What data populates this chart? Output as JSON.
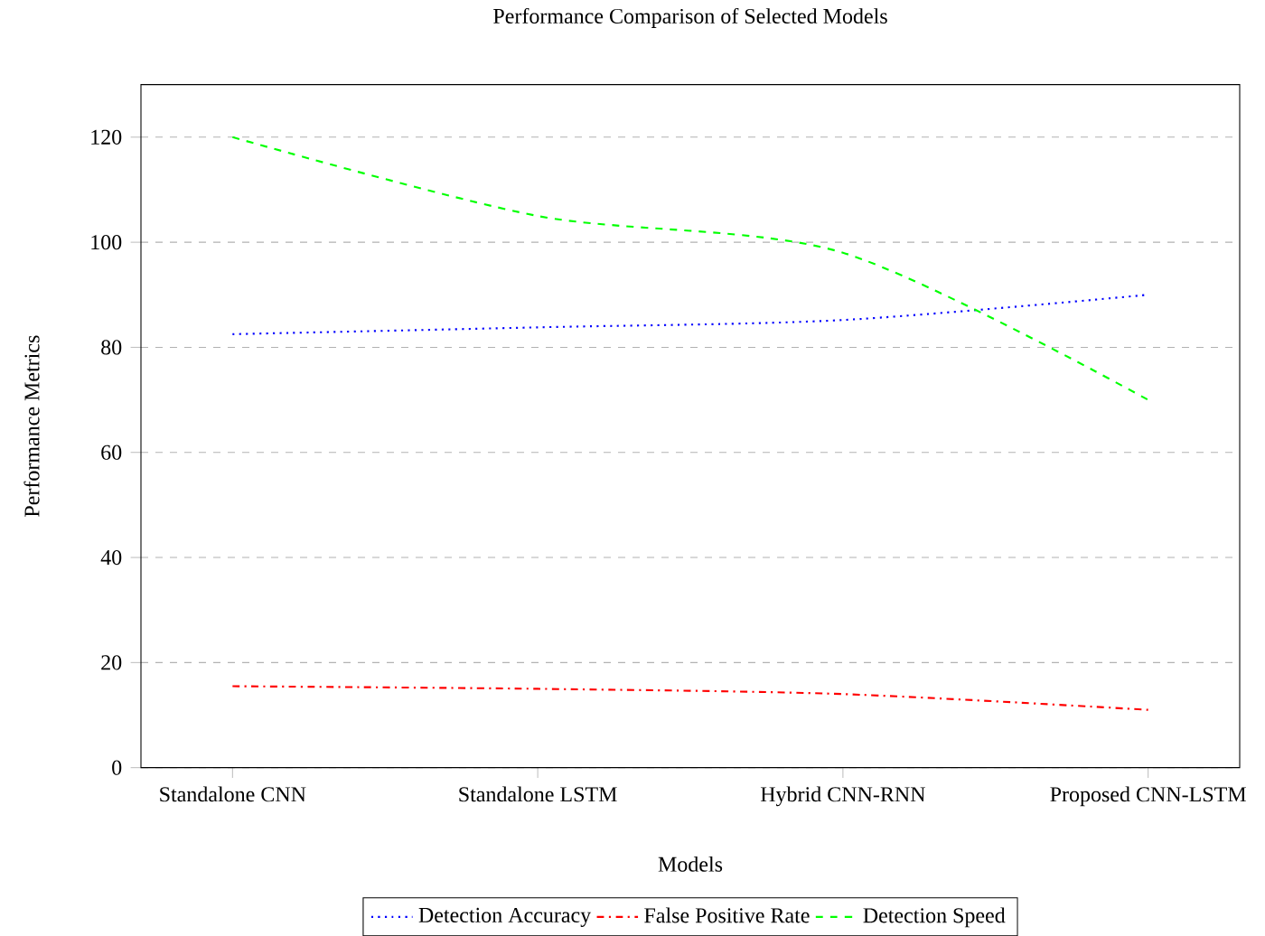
{
  "chart_data": {
    "type": "line",
    "title": "Performance Comparison of Selected Models",
    "xlabel": "Models",
    "ylabel": "Performance Metrics",
    "categories": [
      "Standalone CNN",
      "Standalone LSTM",
      "Hybrid CNN-RNN",
      "Proposed CNN-LSTM"
    ],
    "series": [
      {
        "name": "Detection Accuracy",
        "color": "#0000ff",
        "line_style": "dotted",
        "values": [
          82.5,
          83.8,
          85.2,
          90
        ]
      },
      {
        "name": "False Positive Rate",
        "color": "#ff0000",
        "line_style": "dashdot",
        "values": [
          15.5,
          15,
          14,
          11
        ]
      },
      {
        "name": "Detection Speed",
        "color": "#00ff00",
        "line_style": "dashed",
        "values": [
          120,
          105,
          98,
          70
        ]
      }
    ],
    "ylim": [
      0,
      130
    ],
    "yticks": [
      0,
      20,
      40,
      60,
      80,
      100,
      120
    ],
    "grid": "y",
    "legend": "bottom",
    "marker": "none"
  }
}
